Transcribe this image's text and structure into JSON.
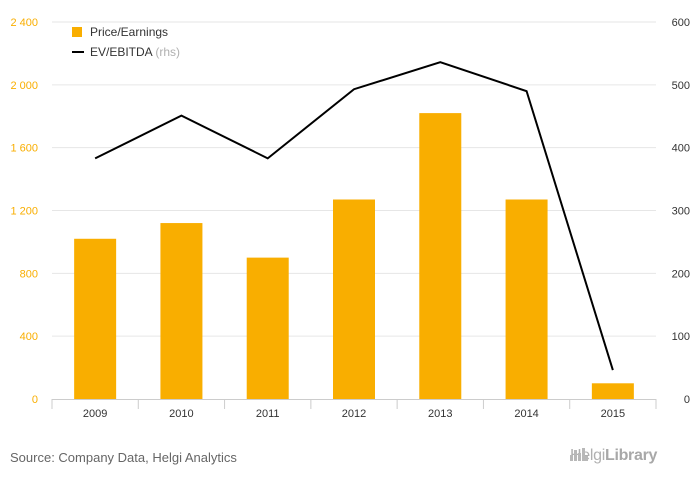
{
  "chart_data": {
    "type": "bar",
    "categories": [
      "2009",
      "2010",
      "2011",
      "2012",
      "2013",
      "2014",
      "2015"
    ],
    "series": [
      {
        "name": "Price/Earnings",
        "type": "bar",
        "axis": "left",
        "color": "#f9ae00",
        "values": [
          1020,
          1120,
          900,
          1270,
          1820,
          1270,
          100
        ]
      },
      {
        "name": "EV/EBITDA",
        "type": "line",
        "axis": "right",
        "color": "#000000",
        "values": [
          383,
          451,
          383,
          493,
          536,
          490,
          46
        ]
      }
    ],
    "left_axis": {
      "ylim": [
        0,
        2400
      ],
      "ticks": [
        0,
        400,
        800,
        1200,
        1600,
        2000,
        2400
      ],
      "tick_labels": [
        "0",
        "400",
        "800",
        "1 200",
        "1 600",
        "2 000",
        "2 400"
      ],
      "color": "#f9ae00"
    },
    "right_axis": {
      "ylim": [
        0,
        600
      ],
      "ticks": [
        0,
        100,
        200,
        300,
        400,
        500,
        600
      ],
      "tick_labels": [
        "0",
        "100",
        "200",
        "300",
        "400",
        "500",
        "600"
      ]
    },
    "legend": {
      "position": "top-left",
      "items": [
        {
          "label": "Price/Earnings",
          "suffix": "",
          "marker": "square",
          "color": "#f9ae00"
        },
        {
          "label": "EV/EBITDA",
          "suffix": "(rhs)",
          "marker": "line",
          "color": "#000000"
        }
      ]
    },
    "grid": true
  },
  "footer": {
    "source": "Source: Company Data, Helgi Analytics",
    "brand_thin": "Helgi",
    "brand_bold": "Library"
  }
}
